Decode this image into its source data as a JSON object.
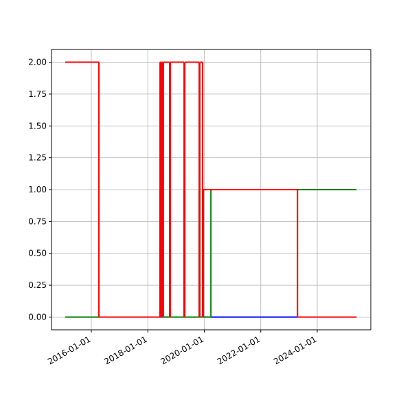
{
  "chart_data": {
    "type": "step",
    "x": [
      "2015-01-28",
      "2016-04-08",
      "2018-06-08",
      "2018-06-17",
      "2018-06-26",
      "2018-07-13",
      "2018-07-22",
      "2018-10-10",
      "2018-10-19",
      "2019-04-15",
      "2019-04-24",
      "2019-10-28",
      "2019-11-05",
      "2019-12-11",
      "2019-12-20",
      "2020-03-27",
      "2023-04-21",
      "2025-05-23"
    ],
    "series": [
      {
        "color": "#0000ff",
        "values": [
          0,
          0,
          0,
          0,
          0,
          0,
          0,
          0,
          0,
          0,
          0,
          0,
          0,
          0,
          0,
          0,
          0,
          0
        ]
      },
      {
        "color": "#008000",
        "values": [
          0,
          0,
          1,
          0,
          1,
          0,
          0,
          1,
          0,
          1,
          0,
          1,
          0,
          1,
          0,
          1,
          1,
          1
        ]
      },
      {
        "color": "#ff0000",
        "values": [
          2,
          0,
          2,
          0,
          2,
          0,
          2,
          0,
          2,
          0,
          2,
          0,
          2,
          0,
          1,
          1,
          0,
          0
        ]
      }
    ],
    "xlim": [
      "2014-08-04",
      "2025-11-24"
    ],
    "xticks": [
      "2016-01-01",
      "2018-01-01",
      "2020-01-01",
      "2022-01-01",
      "2024-01-01"
    ],
    "ylim": [
      -0.1,
      2.1
    ],
    "yticks": [
      {
        "value": 0,
        "label": "0.00"
      },
      {
        "value": 0.25,
        "label": "0.25"
      },
      {
        "value": 0.5,
        "label": "0.50"
      },
      {
        "value": 0.75,
        "label": "0.75"
      },
      {
        "value": 1,
        "label": "1.00"
      },
      {
        "value": 1.25,
        "label": "1.25"
      },
      {
        "value": 1.5,
        "label": "1.50"
      },
      {
        "value": 1.75,
        "label": "1.75"
      },
      {
        "value": 2,
        "label": "2.00"
      }
    ],
    "grid": true
  }
}
